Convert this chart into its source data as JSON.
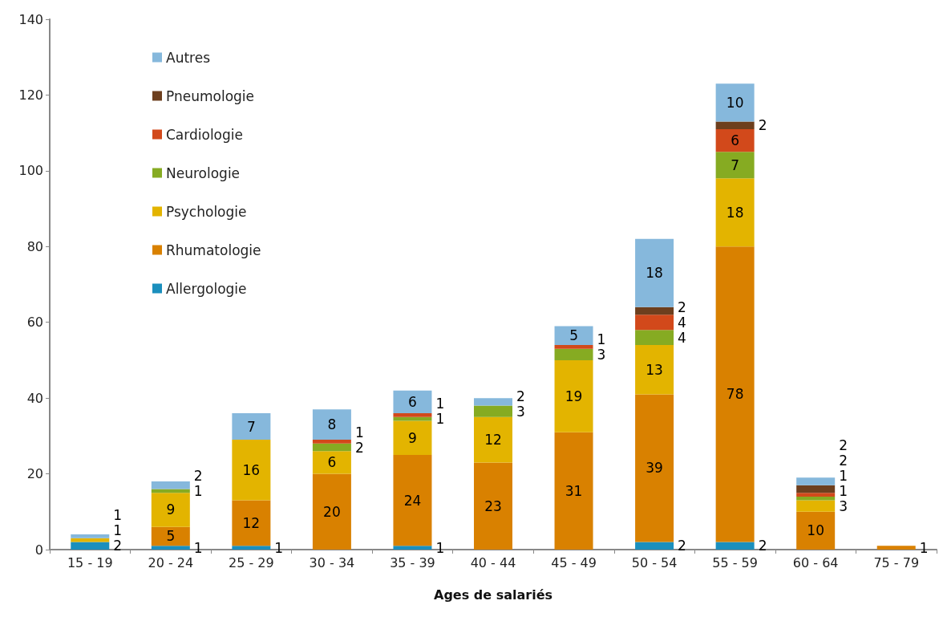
{
  "chart_data": {
    "type": "bar",
    "stacked": true,
    "xlabel": "Ages de salariés",
    "categories": [
      "15 - 19",
      "20 - 24",
      "25 - 29",
      "30 - 34",
      "35 - 39",
      "40 - 44",
      "45 - 49",
      "50 - 54",
      "55 - 59",
      "60 - 64",
      "75 - 79"
    ],
    "series": [
      {
        "name": "Allergologie",
        "color": "#1b8fbd",
        "values": [
          2,
          1,
          1,
          null,
          1,
          null,
          null,
          2,
          2,
          null,
          null
        ]
      },
      {
        "name": "Rhumatologie",
        "color": "#d98100",
        "values": [
          null,
          5,
          12,
          20,
          24,
          23,
          31,
          39,
          78,
          10,
          1
        ]
      },
      {
        "name": "Psychologie",
        "color": "#e3b400",
        "values": [
          1,
          9,
          16,
          6,
          9,
          12,
          19,
          13,
          18,
          3,
          null
        ]
      },
      {
        "name": "Neurologie",
        "color": "#86ab22",
        "values": [
          null,
          1,
          null,
          2,
          1,
          3,
          3,
          4,
          7,
          1,
          null
        ]
      },
      {
        "name": "Cardiologie",
        "color": "#d2491b",
        "values": [
          null,
          null,
          null,
          1,
          1,
          null,
          1,
          4,
          6,
          1,
          null
        ]
      },
      {
        "name": "Pneumologie",
        "color": "#6d3f1e",
        "values": [
          null,
          null,
          null,
          null,
          null,
          null,
          null,
          2,
          2,
          2,
          null
        ]
      },
      {
        "name": "Autres",
        "color": "#86b8dc",
        "values": [
          1,
          2,
          7,
          8,
          6,
          2,
          5,
          18,
          10,
          2,
          null
        ]
      }
    ],
    "ylim": [
      0,
      140
    ],
    "yticks": [
      0,
      20,
      40,
      60,
      80,
      100,
      120,
      140
    ],
    "grid": false,
    "legend": "top left",
    "data_labels": true
  }
}
